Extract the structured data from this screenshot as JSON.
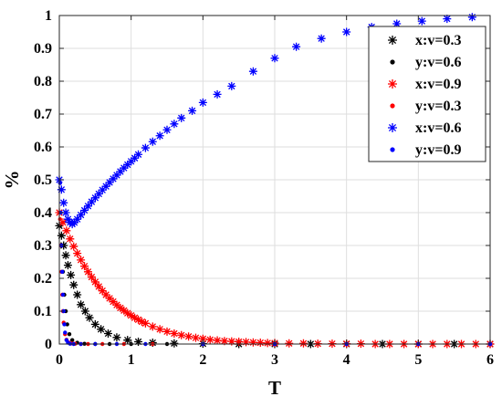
{
  "chart_data": {
    "type": "scatter",
    "xlabel": "T",
    "ylabel": "%",
    "xlim": [
      0,
      6
    ],
    "ylim": [
      0,
      1
    ],
    "xticks": [
      "0",
      "1",
      "2",
      "3",
      "4",
      "5",
      "6"
    ],
    "yticks": [
      "0",
      "0.1",
      "0.2",
      "0.3",
      "0.4",
      "0.5",
      "0.6",
      "0.7",
      "0.8",
      "0.9",
      "1"
    ],
    "grid": true,
    "legend_position": "top-right",
    "series": [
      {
        "name": "x:v=0.3",
        "color": "#000000",
        "marker": "star",
        "x": [
          0,
          0.03,
          0.06,
          0.09,
          0.12,
          0.16,
          0.2,
          0.25,
          0.3,
          0.36,
          0.42,
          0.5,
          0.58,
          0.68,
          0.8,
          0.95,
          1.1,
          1.3,
          1.6,
          2.0,
          2.5,
          3.0,
          3.5,
          4.0,
          4.5,
          5.0,
          5.5,
          6.0
        ],
        "y": [
          0.36,
          0.33,
          0.3,
          0.27,
          0.24,
          0.21,
          0.18,
          0.15,
          0.12,
          0.1,
          0.08,
          0.06,
          0.045,
          0.032,
          0.02,
          0.012,
          0.007,
          0.004,
          0.002,
          0.001,
          0,
          0,
          0,
          0,
          0,
          0,
          0,
          0
        ]
      },
      {
        "name": "y:v=0.6",
        "color": "#000000",
        "marker": "dot",
        "x": [
          0.01,
          0.03,
          0.05,
          0.07,
          0.09,
          0.11,
          0.14,
          0.18,
          0.25,
          0.35,
          0.5,
          0.7,
          1.0,
          1.5,
          2.0,
          3.0,
          4.0,
          5.0,
          6.0
        ],
        "y": [
          0.36,
          0.3,
          0.22,
          0.15,
          0.1,
          0.06,
          0.03,
          0.012,
          0.004,
          0.001,
          0,
          0,
          0,
          0,
          0,
          0,
          0,
          0,
          0
        ]
      },
      {
        "name": "x:v=0.9",
        "color": "#ff0000",
        "marker": "star",
        "x": [
          0,
          0.05,
          0.1,
          0.15,
          0.2,
          0.25,
          0.3,
          0.35,
          0.4,
          0.45,
          0.5,
          0.55,
          0.6,
          0.65,
          0.7,
          0.75,
          0.8,
          0.85,
          0.9,
          0.95,
          1.0,
          1.05,
          1.1,
          1.15,
          1.2,
          1.3,
          1.4,
          1.5,
          1.6,
          1.7,
          1.8,
          1.9,
          2.0,
          2.1,
          2.2,
          2.3,
          2.4,
          2.5,
          2.6,
          2.7,
          2.8,
          2.9,
          3.0,
          3.2,
          3.4,
          3.6,
          3.8,
          4.0,
          4.2,
          4.4,
          4.6,
          4.8,
          5.0,
          5.2,
          5.4,
          5.6,
          5.8,
          6.0
        ],
        "y": [
          0.4,
          0.37,
          0.345,
          0.32,
          0.297,
          0.276,
          0.256,
          0.237,
          0.22,
          0.204,
          0.189,
          0.175,
          0.162,
          0.15,
          0.139,
          0.129,
          0.119,
          0.11,
          0.102,
          0.094,
          0.087,
          0.08,
          0.074,
          0.068,
          0.063,
          0.053,
          0.045,
          0.038,
          0.032,
          0.027,
          0.023,
          0.019,
          0.016,
          0.013,
          0.011,
          0.009,
          0.008,
          0.007,
          0.006,
          0.005,
          0.004,
          0.003,
          0.003,
          0.002,
          0.002,
          0.001,
          0.001,
          0.001,
          0.001,
          0,
          0,
          0,
          0,
          0,
          0,
          0,
          0,
          0
        ]
      },
      {
        "name": "y:v=0.3",
        "color": "#ff0000",
        "marker": "dot",
        "x": [
          0.01,
          0.02,
          0.03,
          0.04,
          0.05,
          0.06,
          0.08,
          0.1,
          0.13,
          0.17,
          0.22,
          0.3,
          0.4,
          0.6,
          0.9,
          1.3,
          2.0,
          3.0,
          4.0,
          5.0,
          6.0
        ],
        "y": [
          0.38,
          0.3,
          0.22,
          0.15,
          0.1,
          0.065,
          0.03,
          0.013,
          0.005,
          0.002,
          0.001,
          0,
          0,
          0,
          0,
          0,
          0,
          0,
          0,
          0,
          0
        ]
      },
      {
        "name": "x:v=0.6",
        "color": "#0000ff",
        "marker": "star",
        "x": [
          0,
          0.03,
          0.06,
          0.09,
          0.12,
          0.15,
          0.18,
          0.21,
          0.25,
          0.3,
          0.35,
          0.4,
          0.45,
          0.5,
          0.55,
          0.6,
          0.65,
          0.7,
          0.75,
          0.8,
          0.85,
          0.9,
          0.95,
          1.0,
          1.05,
          1.1,
          1.2,
          1.3,
          1.4,
          1.5,
          1.6,
          1.7,
          1.85,
          2.0,
          2.2,
          2.4,
          2.7,
          3.0,
          3.3,
          3.65,
          4.0,
          4.35,
          4.7,
          5.05,
          5.4,
          5.75
        ],
        "y": [
          0.5,
          0.47,
          0.43,
          0.4,
          0.38,
          0.37,
          0.365,
          0.37,
          0.38,
          0.393,
          0.407,
          0.42,
          0.433,
          0.445,
          0.457,
          0.469,
          0.48,
          0.492,
          0.503,
          0.514,
          0.525,
          0.536,
          0.546,
          0.556,
          0.566,
          0.577,
          0.597,
          0.616,
          0.634,
          0.652,
          0.67,
          0.688,
          0.71,
          0.735,
          0.76,
          0.785,
          0.83,
          0.87,
          0.905,
          0.93,
          0.95,
          0.965,
          0.975,
          0.983,
          0.99,
          0.995
        ]
      },
      {
        "name": "y:v=0.9",
        "color": "#0000ff",
        "marker": "dot",
        "x": [
          0.01,
          0.02,
          0.03,
          0.04,
          0.05,
          0.06,
          0.07,
          0.08,
          0.1,
          0.12,
          0.15,
          0.2,
          0.3,
          0.5,
          0.8,
          1.2,
          2.0,
          3.0,
          4.0,
          5.0,
          6.0
        ],
        "y": [
          0.49,
          0.4,
          0.3,
          0.22,
          0.15,
          0.1,
          0.06,
          0.035,
          0.012,
          0.004,
          0.001,
          0,
          0,
          0,
          0,
          0,
          0,
          0,
          0,
          0,
          0
        ]
      }
    ]
  }
}
